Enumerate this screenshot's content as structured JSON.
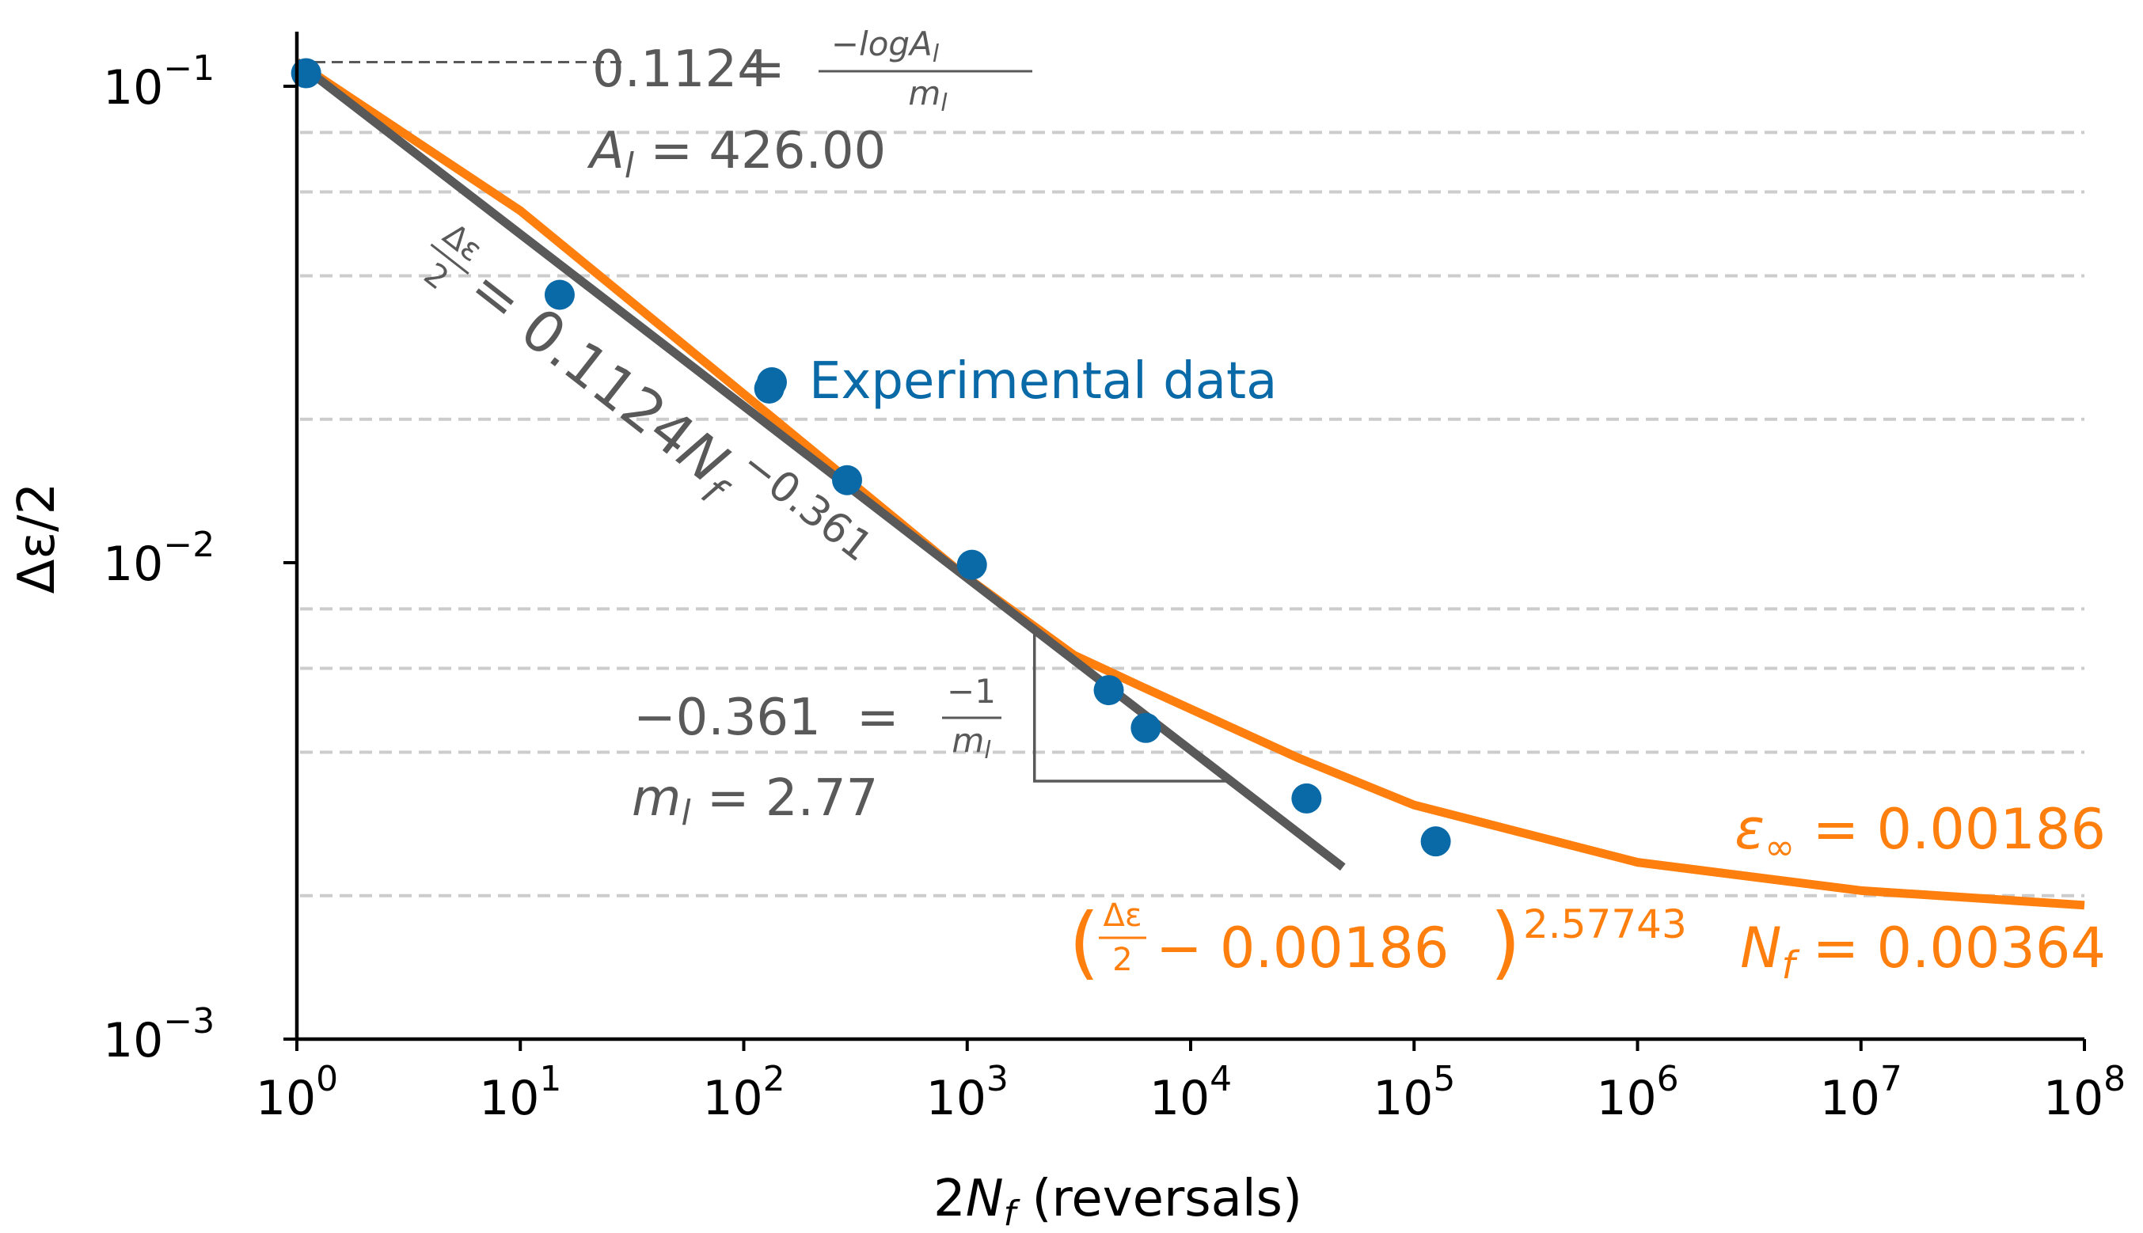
{
  "chart_data": {
    "type": "scatter",
    "xscale": "log",
    "yscale": "log",
    "xlim": [
      1,
      100000000
    ],
    "ylim": [
      0.001,
      0.12
    ],
    "xlabel": "2N_f (reversals)",
    "ylabel": "Δε/2",
    "x_ticks": [
      {
        "value": 1,
        "base": "10",
        "exp": "0"
      },
      {
        "value": 10,
        "base": "10",
        "exp": "1"
      },
      {
        "value": 100,
        "base": "10",
        "exp": "2"
      },
      {
        "value": 1000,
        "base": "10",
        "exp": "3"
      },
      {
        "value": 10000,
        "base": "10",
        "exp": "4"
      },
      {
        "value": 100000,
        "base": "10",
        "exp": "5"
      },
      {
        "value": 1000000,
        "base": "10",
        "exp": "6"
      },
      {
        "value": 10000000,
        "base": "10",
        "exp": "7"
      },
      {
        "value": 100000000,
        "base": "10",
        "exp": "8"
      }
    ],
    "y_ticks": [
      {
        "value": 0.1,
        "base": "10",
        "exp": "−1"
      },
      {
        "value": 0.01,
        "base": "10",
        "exp": "−2"
      },
      {
        "value": 0.001,
        "base": "10",
        "exp": "−3"
      }
    ],
    "grid_lines_y": [
      0.08,
      0.06,
      0.04,
      0.02,
      0.008,
      0.006,
      0.004,
      0.002
    ],
    "experimental_data": {
      "name": "Experimental data",
      "color": "#0a6aa8",
      "x": [
        1.1,
        15,
        130,
        290,
        1050,
        4300,
        6300,
        33000,
        125000
      ],
      "y": [
        0.1065,
        0.0365,
        0.0232,
        0.0149,
        0.0099,
        0.0054,
        0.0045,
        0.0032,
        0.0026
      ]
    },
    "fit_line": {
      "color": "#595959",
      "coefficient": 0.1124,
      "exponent": -0.361,
      "x_range": [
        1,
        48000
      ]
    },
    "fit_curve": {
      "color": "#ff7f0e",
      "x": [
        1,
        10,
        100,
        1000,
        3000,
        6000,
        30000,
        100000,
        1000000,
        10000000,
        100000000
      ],
      "y": [
        0.1124,
        0.0548,
        0.0226,
        0.0093,
        0.0064,
        0.0055,
        0.0039,
        0.0031,
        0.00235,
        0.00205,
        0.00191
      ]
    },
    "slope_triangle": {
      "x": [
        2000,
        16000
      ],
      "y": [
        0.00738,
        0.00348
      ]
    },
    "guide_line": {
      "y": 0.1124,
      "x_to": 30
    }
  },
  "annotations": {
    "intercept_eq_lhs": "0.1124",
    "intercept_eq_num": "−logA",
    "intercept_eq_num_sub": "l",
    "intercept_eq_den": "m",
    "intercept_eq_den_sub": "l",
    "al_symbol": "A",
    "al_sub": "l",
    "al_value": "426.00",
    "basquin_num": "Δε",
    "basquin_den": "2",
    "basquin_coef": "0.1124",
    "basquin_var": "N",
    "basquin_var_sub": "f",
    "basquin_exp": "−0.361",
    "slope_eq_lhs": "−0.361",
    "slope_eq_num": "−1",
    "slope_eq_den": "m",
    "slope_eq_den_sub": "l",
    "ml_symbol": "m",
    "ml_sub": "l",
    "ml_value": "2.77",
    "legend_label": "Experimental data",
    "eps_inf_symbol": "ε",
    "eps_inf_sub": "∞",
    "eps_inf_value": "0.00186",
    "curve_frac_num": "Δε",
    "curve_frac_den": "2",
    "curve_minus_value": "0.00186",
    "curve_exp": "2.57743",
    "curve_var": "N",
    "curve_var_sub": "f",
    "curve_rhs": "0.00364"
  },
  "axis_labels": {
    "x_prefix": "2",
    "x_var": "N",
    "x_sub": "f",
    "x_suffix": " (reversals)",
    "y_label": "Δε/2"
  }
}
